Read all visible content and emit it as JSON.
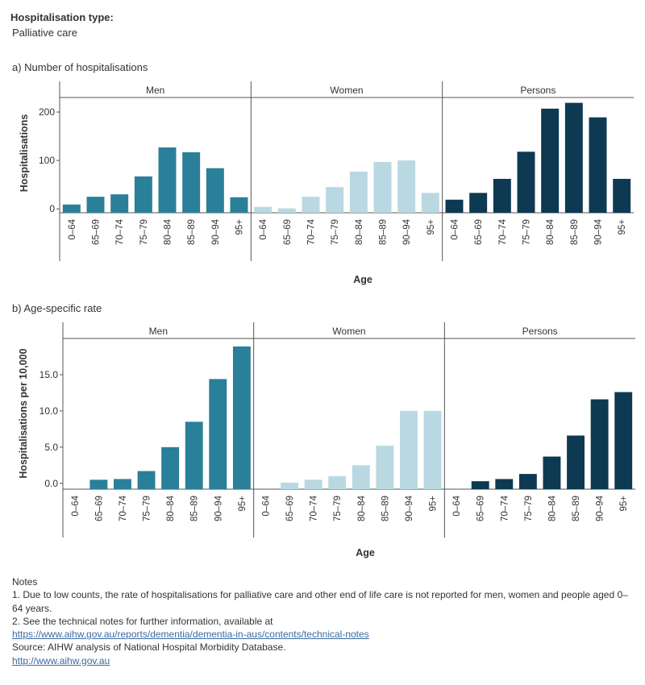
{
  "header": {
    "filter_title": "Hospitalisation type:",
    "filter_value": "Palliative care"
  },
  "colors": {
    "Men": "#2a7f99",
    "Women": "#b9d8e2",
    "Persons": "#0d3a52",
    "axis": "#555555",
    "text": "#333333",
    "link": "#3a6aa0"
  },
  "chart_data": [
    {
      "type": "bar",
      "title": "a) Number of hospitalisations",
      "panels": [
        "Men",
        "Women",
        "Persons"
      ],
      "categories": [
        "0–64",
        "65–69",
        "70–74",
        "75–79",
        "80–84",
        "85–89",
        "90–94",
        "95+"
      ],
      "xlabel": "Age",
      "ylabel": "Hospitalisations",
      "ylim": [
        -8,
        230
      ],
      "yticks": [
        0,
        100,
        200
      ],
      "ytick_labels": [
        "0",
        "100",
        "200"
      ],
      "grid": false,
      "series": [
        {
          "name": "Men",
          "values": [
            9,
            25,
            30,
            67,
            127,
            117,
            84,
            24
          ]
        },
        {
          "name": "Women",
          "values": [
            4,
            1,
            25,
            45,
            77,
            97,
            100,
            33
          ]
        },
        {
          "name": "Persons",
          "values": [
            19,
            33,
            62,
            118,
            207,
            219,
            189,
            62
          ]
        }
      ]
    },
    {
      "type": "bar",
      "title": "b) Age-specific rate",
      "panels": [
        "Men",
        "Women",
        "Persons"
      ],
      "categories": [
        "0–64",
        "65–69",
        "70–74",
        "75–79",
        "80–84",
        "85–89",
        "90–94",
        "95+"
      ],
      "xlabel": "Age",
      "ylabel": "Hospitalisations per 10,000",
      "ylim": [
        -0.8,
        20
      ],
      "yticks": [
        0,
        5,
        10,
        15
      ],
      "ytick_labels": [
        "0.0",
        "5.0",
        "10.0",
        "15.0"
      ],
      "grid": false,
      "series": [
        {
          "name": "Men",
          "values": [
            null,
            0.5,
            0.6,
            1.7,
            5.0,
            8.5,
            14.4,
            18.9
          ]
        },
        {
          "name": "Women",
          "values": [
            null,
            0.1,
            0.5,
            1.0,
            2.5,
            5.2,
            10.0,
            10.0
          ]
        },
        {
          "name": "Persons",
          "values": [
            null,
            0.3,
            0.6,
            1.3,
            3.7,
            6.6,
            11.6,
            12.6
          ]
        }
      ]
    }
  ],
  "notes": {
    "heading": "Notes",
    "note1": "1. Due to low counts, the rate of hospitalisations for palliative care and other end of life care is not reported for men, women and people aged 0–64 years.",
    "note2": "2. See the technical notes for further information, available at",
    "link1": "https://www.aihw.gov.au/reports/dementia/dementia-in-aus/contents/technical-notes",
    "source": "Source: AIHW analysis of National Hospital Morbidity Database.",
    "link2": "http://www.aihw.gov.au"
  }
}
